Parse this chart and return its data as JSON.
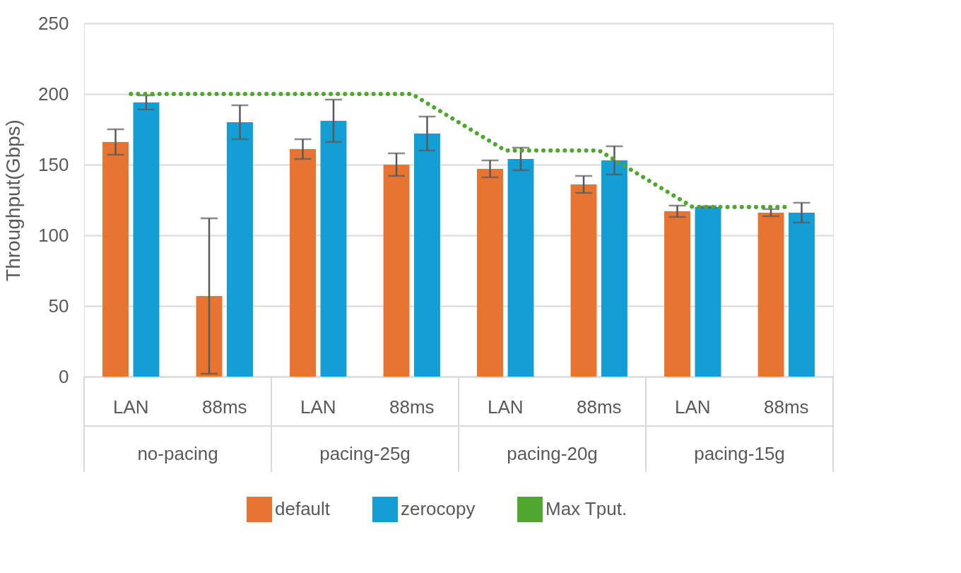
{
  "chart_data": {
    "type": "bar",
    "ylabel": "Throughput(Gbps)",
    "categories": [
      "LAN",
      "88ms",
      "LAN",
      "88ms",
      "LAN",
      "88ms",
      "LAN",
      "88ms"
    ],
    "annotations": [
      "no-pacing",
      "pacing-25g",
      "pacing-20g",
      "pacing-15g"
    ],
    "series": [
      {
        "name": "default",
        "color": "#e87431",
        "values": [
          166,
          57,
          161,
          150,
          147,
          136,
          117,
          116
        ],
        "errors": [
          9,
          55,
          7,
          8,
          6,
          6,
          4,
          2.5
        ]
      },
      {
        "name": "zerocopy",
        "color": "#139fd6",
        "values": [
          194,
          180,
          181,
          172,
          154,
          153,
          120,
          116
        ],
        "errors": [
          5,
          12,
          15,
          12,
          8,
          10,
          0.5,
          7
        ]
      },
      {
        "name": "Max Tput.",
        "type": "line",
        "color": "#4ea72e",
        "line_style": "dotted",
        "marker": "none",
        "values": [
          200,
          200,
          200,
          200,
          160,
          160,
          120,
          120
        ]
      }
    ],
    "ylim": [
      0,
      250
    ],
    "yticks": [
      0,
      50,
      100,
      150,
      200,
      250
    ],
    "grid": "y",
    "legend": "bottom"
  }
}
